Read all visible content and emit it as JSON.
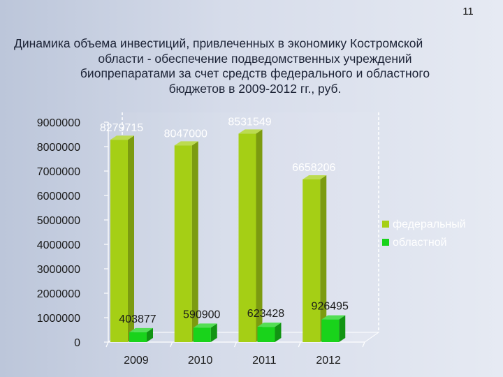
{
  "page_number": "11",
  "title_lines": [
    "Динамика объема инвестиций, привлеченных в экономику Костромской",
    "области - обеспечение подведомственных учреждений",
    "биопрепаратами за счет средств федерального и областного",
    "бюджетов в 2009-2012 гг., руб."
  ],
  "chart_data": {
    "type": "bar",
    "categories": [
      "2009",
      "2010",
      "2011",
      "2012"
    ],
    "series": [
      {
        "name": "федеральный",
        "values": [
          8279715,
          8047000,
          8531549,
          6658206
        ],
        "color": "#a5cf15"
      },
      {
        "name": "областной",
        "values": [
          403877,
          590900,
          623428,
          926495
        ],
        "color": "#19d31b"
      }
    ],
    "data_labels": {
      "федеральный": [
        "8279715",
        "8047000",
        "8531549",
        "6658206"
      ],
      "областной": [
        "403877",
        "590900",
        "623428",
        "926495"
      ]
    },
    "y_ticks": [
      "0",
      "1000000",
      "2000000",
      "3000000",
      "4000000",
      "5000000",
      "6000000",
      "7000000",
      "8000000",
      "9000000"
    ],
    "ylim": [
      0,
      9000000
    ],
    "three_d": true,
    "grid": false,
    "legend_position": "right"
  }
}
